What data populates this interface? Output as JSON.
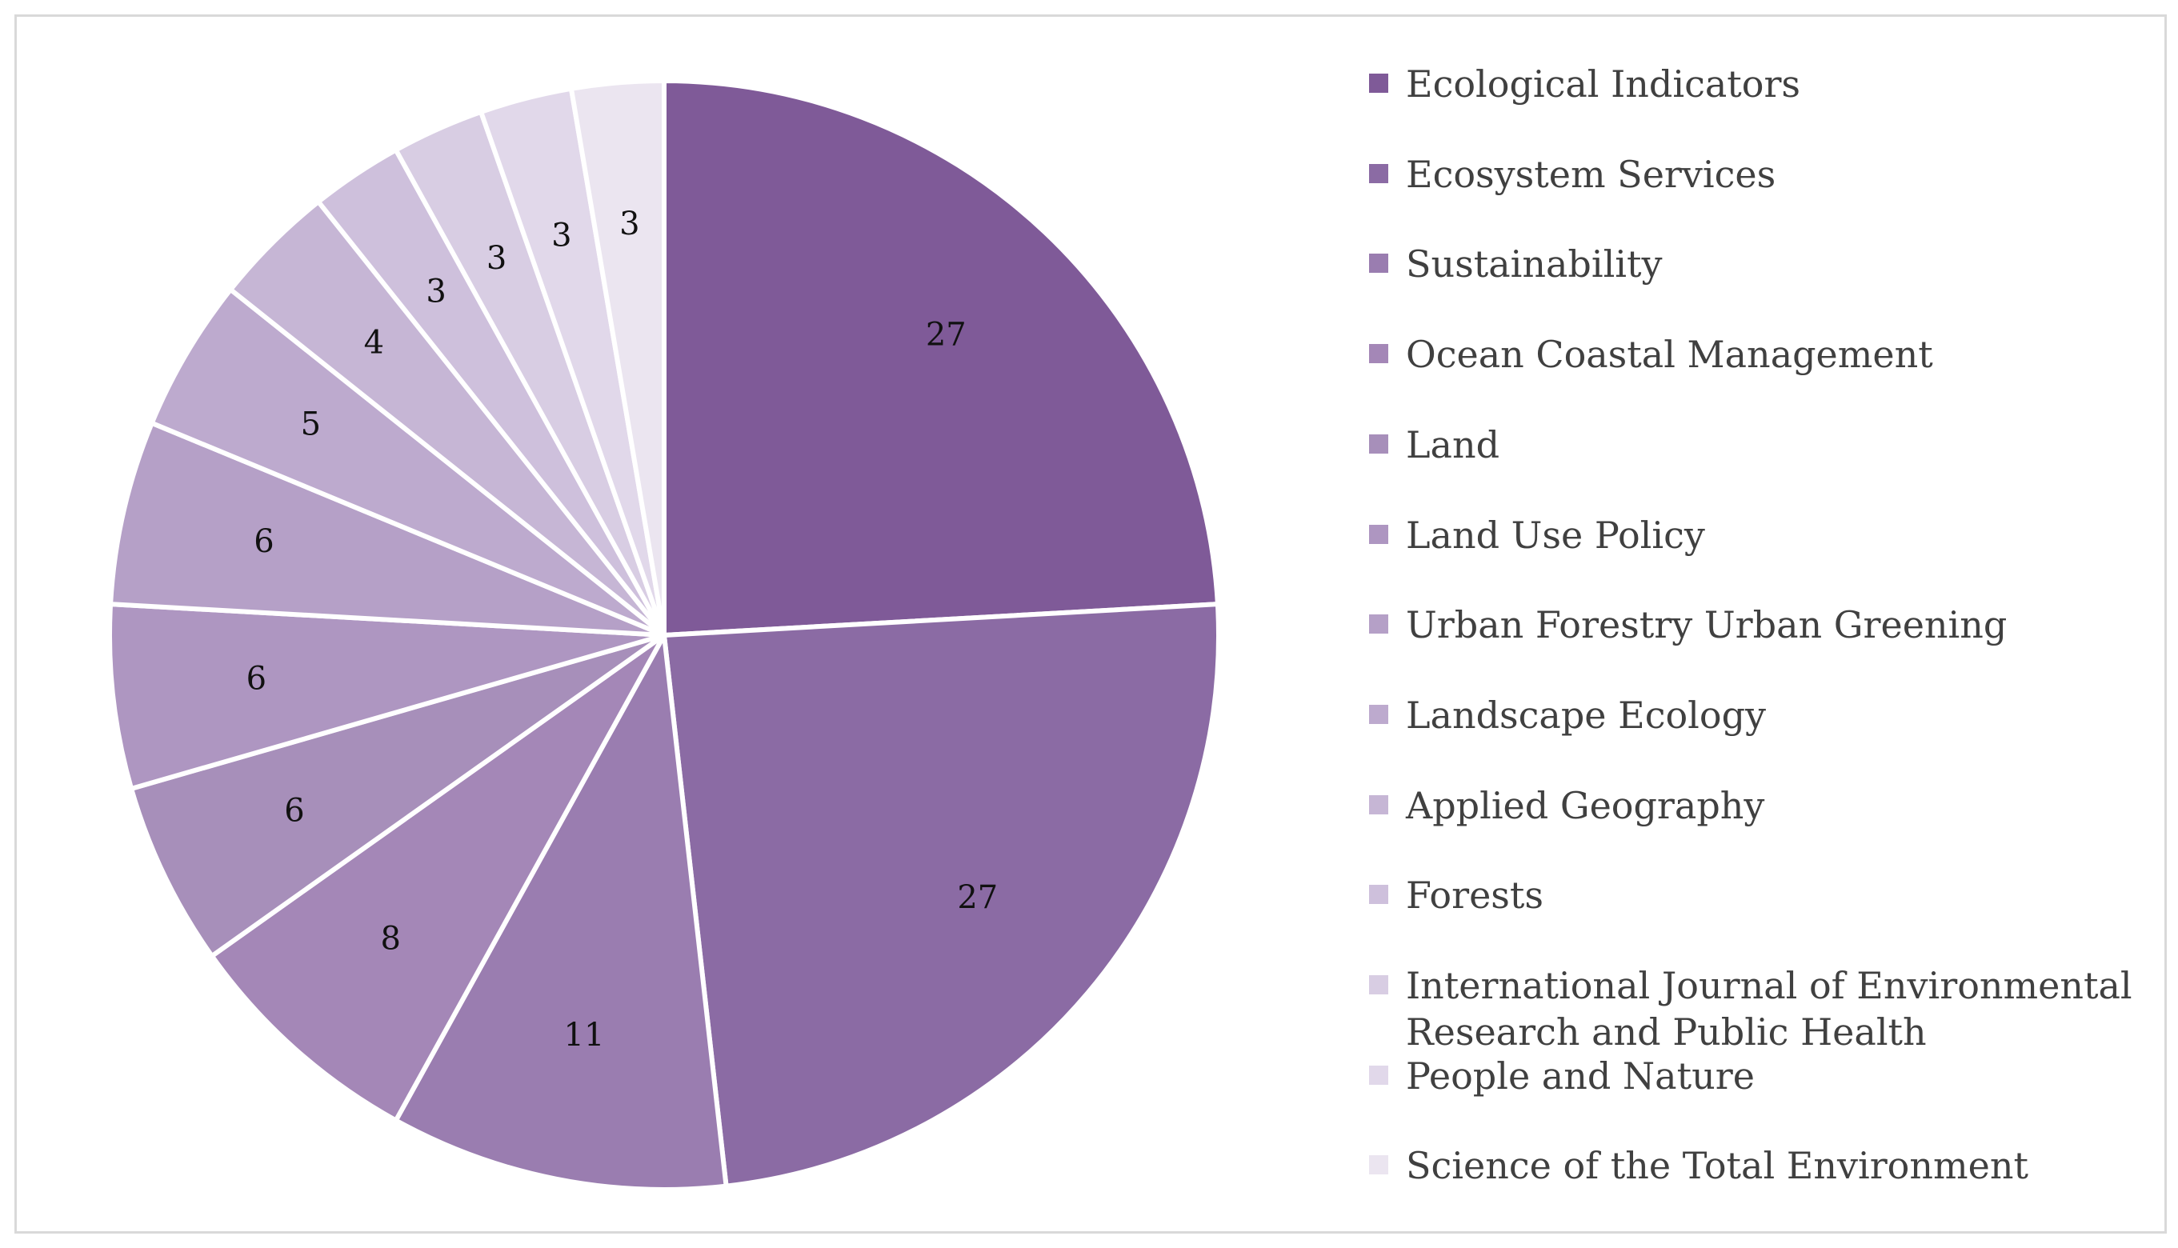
{
  "chart_data": {
    "type": "pie",
    "title": "",
    "legend_position": "right",
    "slices": [
      {
        "label": "Ecological Indicators",
        "value": 27,
        "color": "#7f5a98"
      },
      {
        "label": "Ecosystem Services",
        "value": 27,
        "color": "#8b6ba4"
      },
      {
        "label": "Sustainability",
        "value": 11,
        "color": "#9a7db0"
      },
      {
        "label": "Ocean Coastal Management",
        "value": 8,
        "color": "#a487b7"
      },
      {
        "label": "Land",
        "value": 6,
        "color": "#a78fba"
      },
      {
        "label": "Land Use Policy",
        "value": 6,
        "color": "#ae96c1"
      },
      {
        "label": "Urban Forestry Urban Greening",
        "value": 6,
        "color": "#b5a0c7"
      },
      {
        "label": "Landscape Ecology",
        "value": 5,
        "color": "#bdaace"
      },
      {
        "label": "Applied Geography",
        "value": 4,
        "color": "#c6b6d5"
      },
      {
        "label": "Forests",
        "value": 3,
        "color": "#cec0dc"
      },
      {
        "label": "International Journal of Environmental Research and Public Health",
        "value": 3,
        "color": "#d8cde3"
      },
      {
        "label": "People and Nature",
        "value": 3,
        "color": "#e1d8ea"
      },
      {
        "label": "Science of the Total Environment",
        "value": 3,
        "color": "#ebe5f0"
      }
    ]
  }
}
